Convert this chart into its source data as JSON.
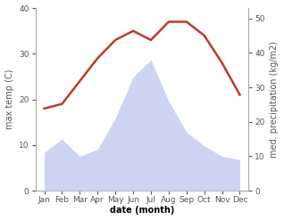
{
  "months": [
    "Jan",
    "Feb",
    "Mar",
    "Apr",
    "May",
    "Jun",
    "Jul",
    "Aug",
    "Sep",
    "Oct",
    "Nov",
    "Dec"
  ],
  "temperature": [
    18,
    19,
    24,
    29,
    33,
    35,
    33,
    37,
    37,
    34,
    28,
    21
  ],
  "precipitation": [
    11,
    15,
    10,
    12,
    21,
    33,
    38,
    26,
    17,
    13,
    10,
    9
  ],
  "temp_color": "#c0392b",
  "precip_fill_color": "#c5cdf0",
  "precip_fill_alpha": 0.85,
  "temp_ylim": [
    0,
    40
  ],
  "precip_ylim": [
    0,
    53
  ],
  "temp_yticks": [
    0,
    10,
    20,
    30,
    40
  ],
  "precip_yticks": [
    0,
    10,
    20,
    30,
    40,
    50
  ],
  "temp_ylabel": "max temp (C)",
  "precip_ylabel": "med. precipitation (kg/m2)",
  "xlabel": "date (month)",
  "bg_color": "#ffffff",
  "spine_color": "#aaaaaa",
  "tick_color": "#555555",
  "label_fontsize": 7,
  "tick_fontsize": 6.5,
  "xlabel_fontsize": 7,
  "line_width": 1.8
}
